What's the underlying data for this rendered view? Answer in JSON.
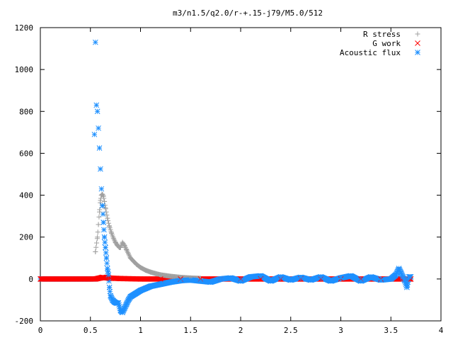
{
  "chart_data": {
    "type": "scatter",
    "title": "m3/n1.5/q2.0/r-+.15-j79/M5.0/512",
    "xlabel": "",
    "ylabel": "",
    "xlim": [
      0,
      4
    ],
    "ylim": [
      -200,
      1200
    ],
    "xticks": [
      0,
      0.5,
      1,
      1.5,
      2,
      2.5,
      3,
      3.5,
      4
    ],
    "xtick_labels": [
      "0",
      "0.5",
      "1",
      "1.5",
      "2",
      "2.5",
      "3",
      "3.5",
      "4"
    ],
    "yticks": [
      -200,
      0,
      200,
      400,
      600,
      800,
      1000,
      1200
    ],
    "ytick_labels": [
      "-200",
      "0",
      "200",
      "400",
      "600",
      "800",
      "1000",
      "1200"
    ],
    "grid": false,
    "legend_position": "top-right",
    "series": [
      {
        "name": "R stress",
        "marker": "plus",
        "color": "#a0a0a0",
        "x": [
          0.55,
          0.57,
          0.58,
          0.59,
          0.6,
          0.61,
          0.62,
          0.63,
          0.64,
          0.65,
          0.67,
          0.69,
          0.71,
          0.73,
          0.75,
          0.77,
          0.79,
          0.8,
          0.82,
          0.84,
          0.86,
          0.88,
          0.9,
          0.93,
          0.96,
          1.0,
          1.05,
          1.1,
          1.15,
          1.2,
          1.3,
          1.4,
          1.5,
          1.6
        ],
        "y": [
          130,
          200,
          260,
          320,
          375,
          400,
          405,
          395,
          370,
          340,
          290,
          250,
          220,
          195,
          175,
          160,
          150,
          150,
          175,
          160,
          140,
          120,
          100,
          85,
          70,
          55,
          42,
          33,
          26,
          20,
          13,
          8,
          5,
          3
        ]
      },
      {
        "name": "G work",
        "marker": "cross",
        "color": "#ff0000",
        "x": [
          0.55,
          0.6,
          0.62,
          0.65,
          0.7,
          0.75,
          0.8,
          0.9,
          1.0,
          1.2,
          1.4,
          1.6,
          1.8,
          2.0,
          2.2,
          2.4,
          2.6,
          2.8,
          3.0,
          3.2,
          3.4,
          3.6,
          3.7
        ],
        "y": [
          0,
          5,
          8,
          6,
          4,
          3,
          2,
          1,
          0,
          0,
          0,
          0,
          0,
          0,
          0,
          0,
          0,
          0,
          0,
          0,
          0,
          0,
          0
        ]
      },
      {
        "name": "Acoustic flux",
        "marker": "star",
        "color": "#1e90ff",
        "x": [
          0.54,
          0.55,
          0.56,
          0.57,
          0.58,
          0.59,
          0.6,
          0.61,
          0.62,
          0.63,
          0.64,
          0.65,
          0.66,
          0.67,
          0.68,
          0.69,
          0.7,
          0.72,
          0.74,
          0.76,
          0.78,
          0.8,
          0.82,
          0.84,
          0.86,
          0.88,
          0.9,
          0.95,
          1.0,
          1.05,
          1.1,
          1.2,
          1.3,
          1.4,
          1.5,
          1.6,
          1.7,
          1.8,
          1.9,
          2.0,
          2.1,
          2.2,
          2.3,
          2.4,
          2.5,
          2.6,
          2.7,
          2.8,
          2.9,
          3.0,
          3.1,
          3.2,
          3.3,
          3.4,
          3.5,
          3.55,
          3.58,
          3.6,
          3.62,
          3.64,
          3.66,
          3.68
        ],
        "y": [
          690,
          1130,
          830,
          800,
          720,
          625,
          525,
          430,
          350,
          270,
          200,
          150,
          100,
          50,
          20,
          -40,
          -80,
          -100,
          -110,
          -115,
          -115,
          -150,
          -160,
          -140,
          -120,
          -100,
          -85,
          -70,
          -55,
          -45,
          -35,
          -25,
          -15,
          -8,
          -5,
          -10,
          -15,
          0,
          5,
          -10,
          10,
          15,
          -10,
          10,
          -5,
          8,
          -5,
          10,
          -10,
          5,
          15,
          -10,
          10,
          -5,
          0,
          20,
          50,
          30,
          10,
          -10,
          -40,
          10
        ]
      }
    ]
  }
}
